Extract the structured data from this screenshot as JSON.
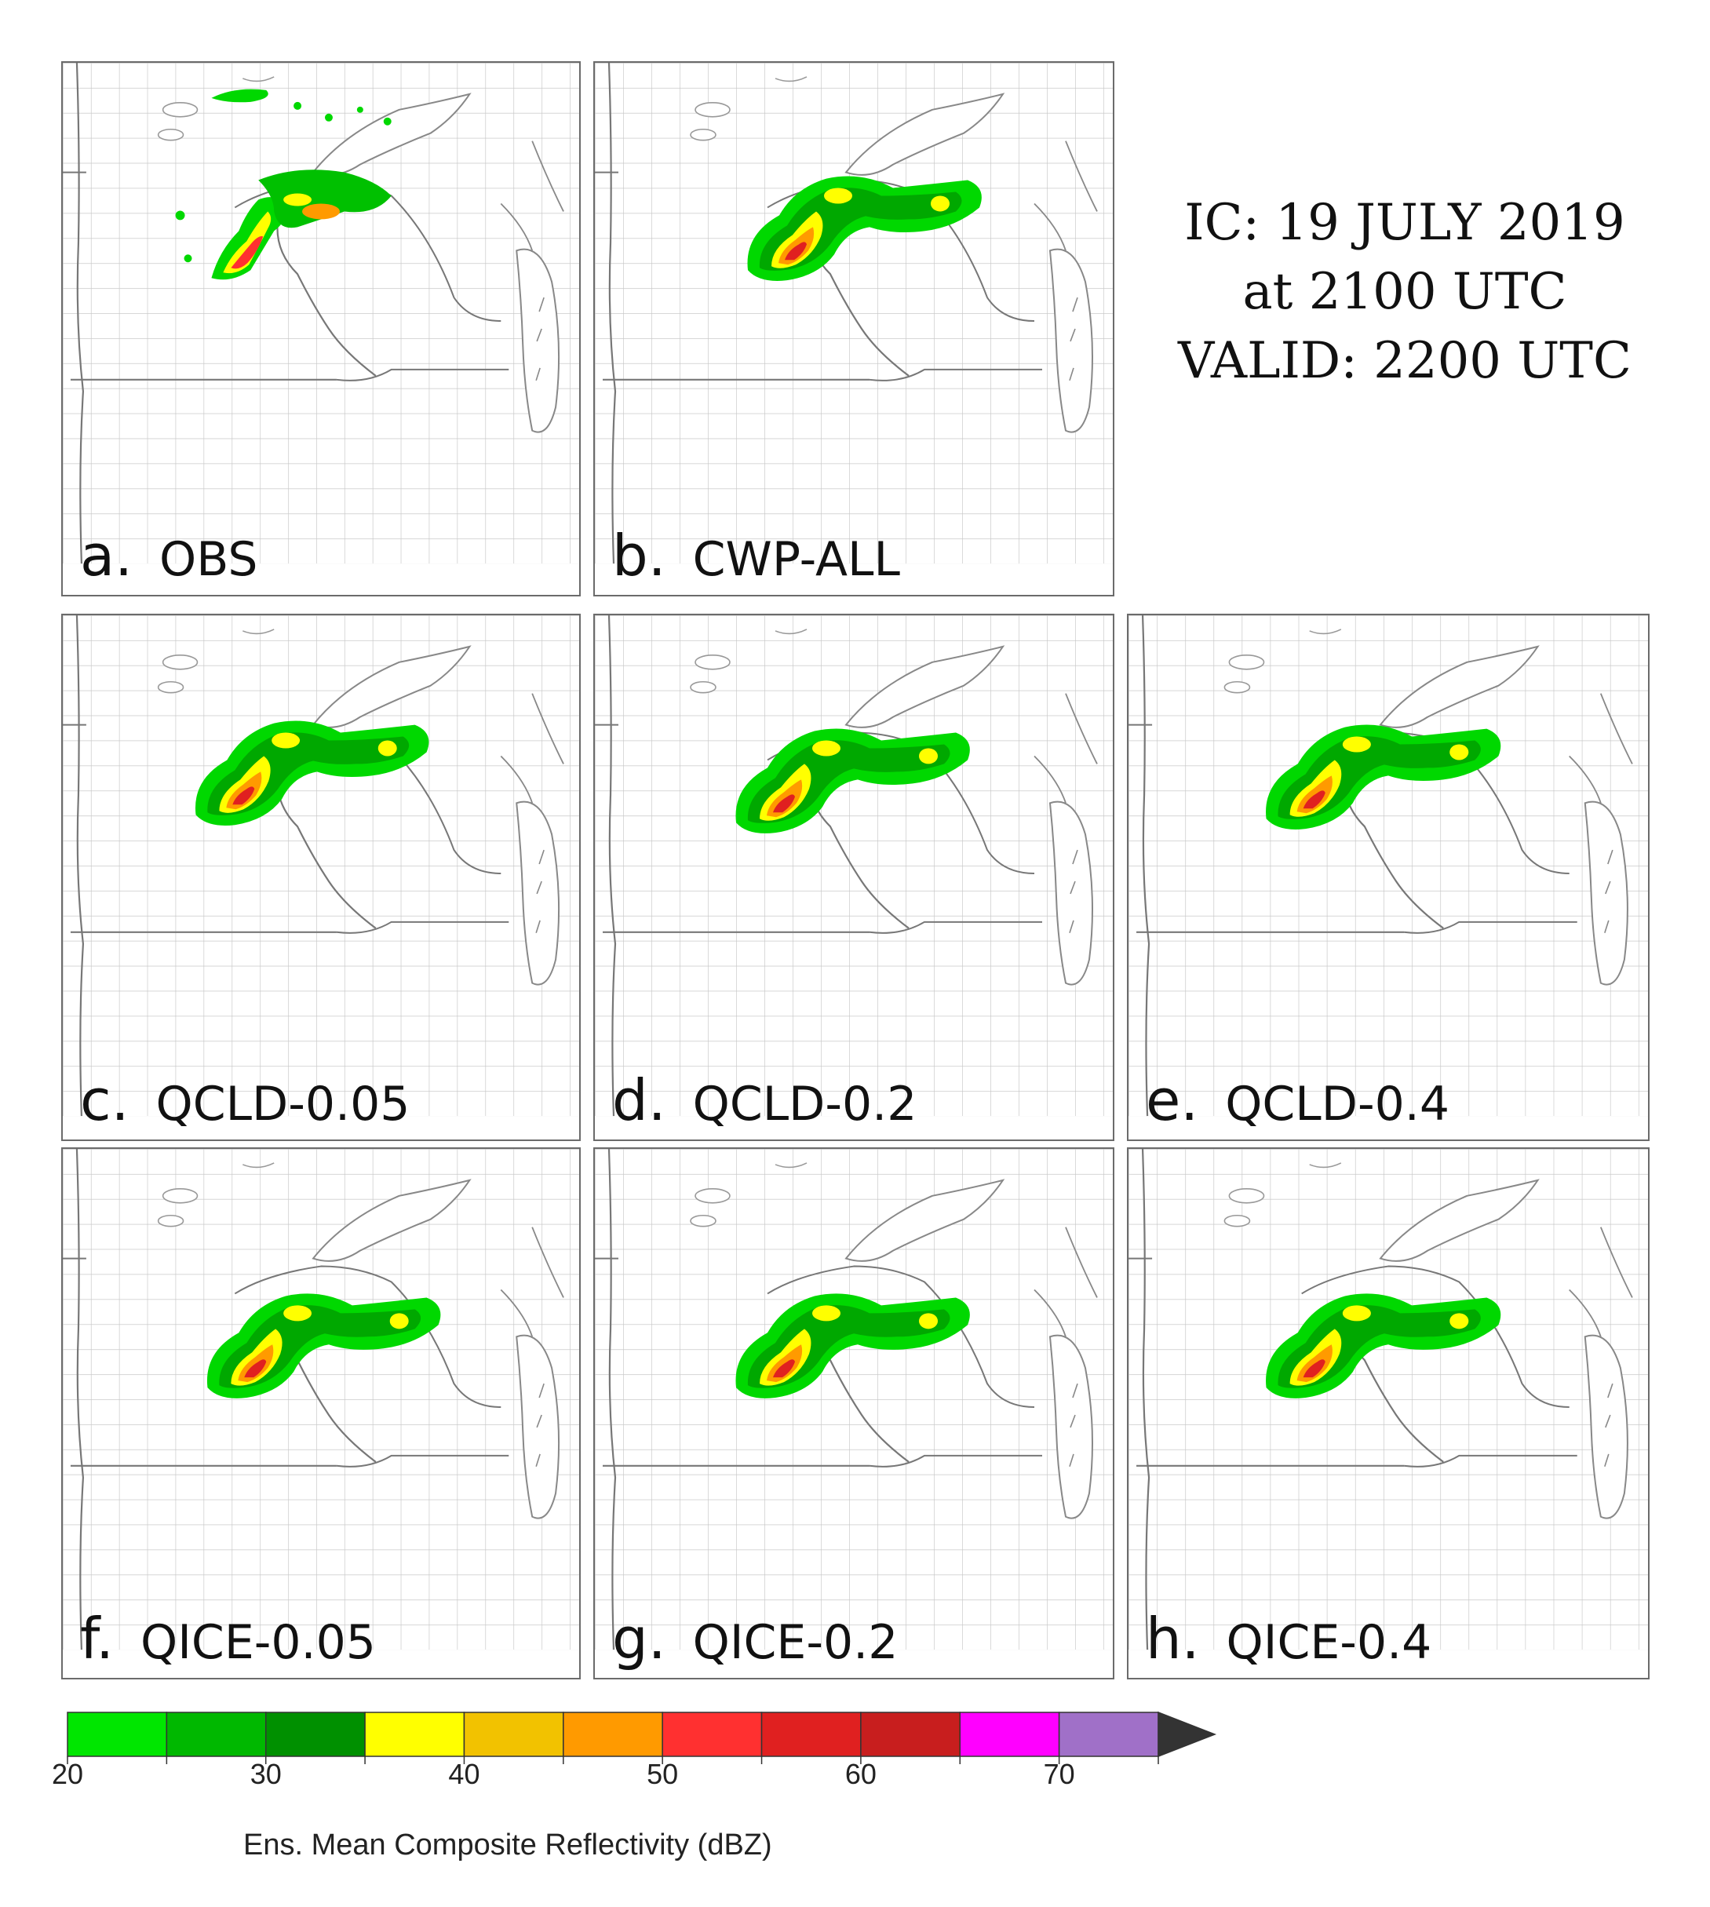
{
  "header": {
    "ic_line": "IC: 19 JULY 2019",
    "at_line": "at 2100 UTC",
    "valid_line": "VALID: 2200 UTC"
  },
  "panels": [
    {
      "letter": "a.",
      "name": "OBS"
    },
    {
      "letter": "b.",
      "name": "CWP-ALL"
    },
    {
      "letter": "c.",
      "name": "QCLD-0.05"
    },
    {
      "letter": "d.",
      "name": "QCLD-0.2"
    },
    {
      "letter": "e.",
      "name": "QCLD-0.4"
    },
    {
      "letter": "f.",
      "name": "QICE-0.05"
    },
    {
      "letter": "g.",
      "name": "QICE-0.2"
    },
    {
      "letter": "h.",
      "name": "QICE-0.4"
    }
  ],
  "colorbar": {
    "title": "Ens. Mean Composite Reflectivity (dBZ)",
    "ticks": [
      "20",
      "30",
      "40",
      "50",
      "60",
      "70"
    ],
    "bins": [
      {
        "from": 20,
        "to": 25,
        "color": "#00e600"
      },
      {
        "from": 25,
        "to": 30,
        "color": "#00b800"
      },
      {
        "from": 30,
        "to": 35,
        "color": "#009000"
      },
      {
        "from": 35,
        "to": 40,
        "color": "#ffff00"
      },
      {
        "from": 40,
        "to": 45,
        "color": "#f2c200"
      },
      {
        "from": 45,
        "to": 50,
        "color": "#ff9a00"
      },
      {
        "from": 50,
        "to": 55,
        "color": "#ff3030"
      },
      {
        "from": 55,
        "to": 60,
        "color": "#e02020"
      },
      {
        "from": 60,
        "to": 65,
        "color": "#c81e1e"
      },
      {
        "from": 65,
        "to": 70,
        "color": "#ff00ff"
      },
      {
        "from": 70,
        "to": 75,
        "color": "#a070c8"
      }
    ],
    "overflow_color": "#333333"
  }
}
